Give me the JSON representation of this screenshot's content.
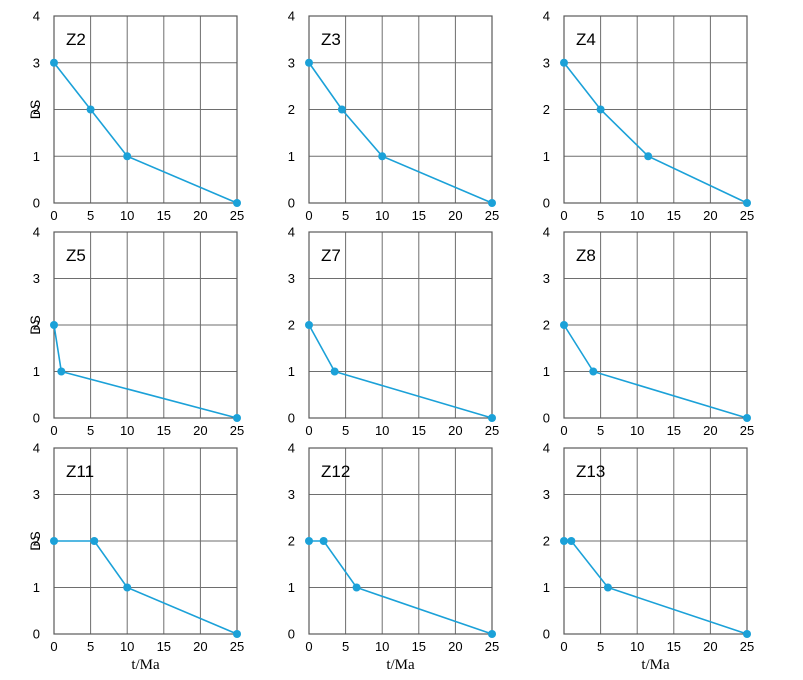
{
  "chart_data": [
    {
      "type": "line",
      "panel_label": "Z2",
      "ylabel": "DS",
      "xlabel": "",
      "xlim": [
        0,
        25
      ],
      "ylim": [
        0,
        4
      ],
      "xticks": [
        0,
        5,
        10,
        15,
        20,
        25
      ],
      "yticks": [
        0,
        1,
        2,
        3,
        4
      ],
      "grid": true,
      "series": [
        {
          "x": [
            0,
            5,
            10,
            25
          ],
          "y": [
            3,
            2,
            1,
            0
          ]
        }
      ]
    },
    {
      "type": "line",
      "panel_label": "Z3",
      "ylabel": "",
      "xlabel": "",
      "xlim": [
        0,
        25
      ],
      "ylim": [
        0,
        4
      ],
      "xticks": [
        0,
        5,
        10,
        15,
        20,
        25
      ],
      "yticks": [
        0,
        1,
        2,
        3,
        4
      ],
      "grid": true,
      "series": [
        {
          "x": [
            0,
            4.5,
            10,
            25
          ],
          "y": [
            3,
            2,
            1,
            0
          ]
        }
      ]
    },
    {
      "type": "line",
      "panel_label": "Z4",
      "ylabel": "",
      "xlabel": "",
      "xlim": [
        0,
        25
      ],
      "ylim": [
        0,
        4
      ],
      "xticks": [
        0,
        5,
        10,
        15,
        20,
        25
      ],
      "yticks": [
        0,
        1,
        2,
        3,
        4
      ],
      "grid": true,
      "series": [
        {
          "x": [
            0,
            5,
            11.5,
            25
          ],
          "y": [
            3,
            2,
            1,
            0
          ]
        }
      ]
    },
    {
      "type": "line",
      "panel_label": "Z5",
      "ylabel": "DS",
      "xlabel": "",
      "xlim": [
        0,
        25
      ],
      "ylim": [
        0,
        4
      ],
      "xticks": [
        0,
        5,
        10,
        15,
        20,
        25
      ],
      "yticks": [
        0,
        1,
        2,
        3,
        4
      ],
      "grid": true,
      "series": [
        {
          "x": [
            0,
            1,
            25
          ],
          "y": [
            2,
            1,
            0
          ]
        }
      ]
    },
    {
      "type": "line",
      "panel_label": "Z7",
      "ylabel": "",
      "xlabel": "",
      "xlim": [
        0,
        25
      ],
      "ylim": [
        0,
        4
      ],
      "xticks": [
        0,
        5,
        10,
        15,
        20,
        25
      ],
      "yticks": [
        0,
        1,
        2,
        3,
        4
      ],
      "grid": true,
      "series": [
        {
          "x": [
            0,
            3.5,
            25
          ],
          "y": [
            2,
            1,
            0
          ]
        }
      ]
    },
    {
      "type": "line",
      "panel_label": "Z8",
      "ylabel": "",
      "xlabel": "",
      "xlim": [
        0,
        25
      ],
      "ylim": [
        0,
        4
      ],
      "xticks": [
        0,
        5,
        10,
        15,
        20,
        25
      ],
      "yticks": [
        0,
        1,
        2,
        3,
        4
      ],
      "grid": true,
      "series": [
        {
          "x": [
            0,
            4,
            25
          ],
          "y": [
            2,
            1,
            0
          ]
        }
      ]
    },
    {
      "type": "line",
      "panel_label": "Z11",
      "ylabel": "DS",
      "xlabel": "t/Ma",
      "xlim": [
        0,
        25
      ],
      "ylim": [
        0,
        4
      ],
      "xticks": [
        0,
        5,
        10,
        15,
        20,
        25
      ],
      "yticks": [
        0,
        1,
        2,
        3,
        4
      ],
      "grid": true,
      "series": [
        {
          "x": [
            0,
            5.5,
            10,
            25
          ],
          "y": [
            2,
            2,
            1,
            0
          ]
        }
      ]
    },
    {
      "type": "line",
      "panel_label": "Z12",
      "ylabel": "",
      "xlabel": "t/Ma",
      "xlim": [
        0,
        25
      ],
      "ylim": [
        0,
        4
      ],
      "xticks": [
        0,
        5,
        10,
        15,
        20,
        25
      ],
      "yticks": [
        0,
        1,
        2,
        3,
        4
      ],
      "grid": true,
      "series": [
        {
          "x": [
            0,
            2,
            6.5,
            25
          ],
          "y": [
            2,
            2,
            1,
            0
          ]
        }
      ]
    },
    {
      "type": "line",
      "panel_label": "Z13",
      "ylabel": "",
      "xlabel": "t/Ma",
      "xlim": [
        0,
        25
      ],
      "ylim": [
        0,
        4
      ],
      "xticks": [
        0,
        5,
        10,
        15,
        20,
        25
      ],
      "yticks": [
        0,
        1,
        2,
        3,
        4
      ],
      "grid": true,
      "series": [
        {
          "x": [
            0,
            1,
            6,
            25
          ],
          "y": [
            2,
            2,
            1,
            0
          ]
        }
      ]
    }
  ],
  "colors": {
    "series": "#1ba1d8",
    "grid": "#6e6e6e",
    "frame": "#5a5a5a"
  }
}
